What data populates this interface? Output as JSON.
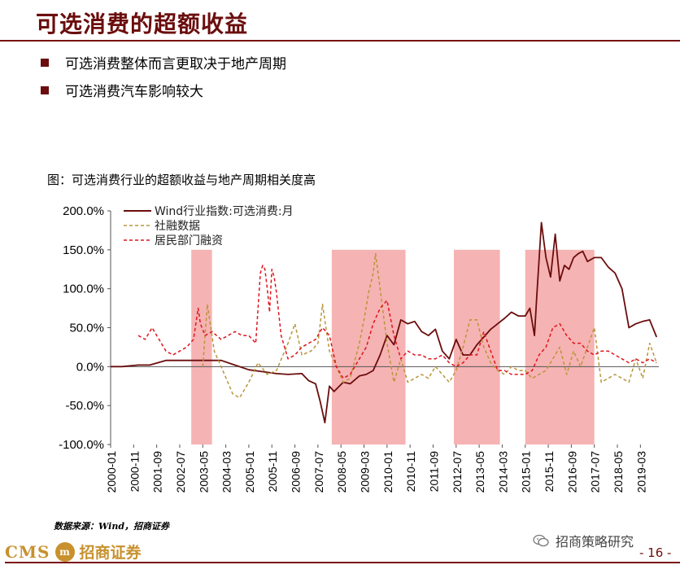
{
  "header": {
    "title": "可选消费的超额收益"
  },
  "bullets": [
    "可选消费整体而言更取决于地产周期",
    "可选消费汽车影响较大"
  ],
  "figure_caption": "图：可选消费行业的超额收益与地产周期相关度高",
  "source_note": "数据来源：Wind，招商证券",
  "footer": {
    "logo_latin": "CMS",
    "logo_badge": "m",
    "logo_chinese": "招商证券",
    "wechat_label": "招商策略研究",
    "page_number": "- 16 -"
  },
  "colors": {
    "accent": "#6b0d0d",
    "wind_series": "#6b0d0d",
    "social_financing_series": "#b8963a",
    "household_series": "#e0141e",
    "shade": "#f4a6a6"
  },
  "chart_data": {
    "type": "line",
    "title": "",
    "xlabel": "",
    "ylabel": "",
    "ylim": [
      -100,
      200
    ],
    "yticks": [
      -100,
      -50,
      0,
      50,
      100,
      150,
      200
    ],
    "ytick_labels": [
      "-100.0%",
      "-50.0%",
      "0.0%",
      "50.0%",
      "100.0%",
      "150.0%",
      "200.0%"
    ],
    "xlim": [
      "2000-01",
      "2019-11"
    ],
    "xtick_labels": [
      "2000-01",
      "2000-11",
      "2001-09",
      "2002-07",
      "2003-05",
      "2004-03",
      "2005-01",
      "2005-11",
      "2006-09",
      "2007-07",
      "2008-05",
      "2009-03",
      "2010-01",
      "2010-11",
      "2011-09",
      "2012-07",
      "2013-05",
      "2014-03",
      "2015-01",
      "2015-11",
      "2016-09",
      "2017-07",
      "2018-05",
      "2019-03"
    ],
    "legend_position": "top-left",
    "shaded_periods": [
      [
        "2002-12",
        "2003-09"
      ],
      [
        "2008-01",
        "2010-09"
      ],
      [
        "2012-06",
        "2014-02"
      ],
      [
        "2015-01",
        "2017-07"
      ]
    ],
    "series": [
      {
        "name": "Wind行业指数:可选消费:月",
        "style": "solid",
        "x": [
          "2000-01",
          "2000-06",
          "2001-01",
          "2001-06",
          "2002-01",
          "2002-06",
          "2003-01",
          "2003-06",
          "2004-01",
          "2004-06",
          "2005-01",
          "2005-06",
          "2006-01",
          "2006-06",
          "2006-12",
          "2007-03",
          "2007-06",
          "2007-08",
          "2007-10",
          "2007-12",
          "2008-02",
          "2008-06",
          "2008-09",
          "2009-01",
          "2009-04",
          "2009-07",
          "2009-10",
          "2010-01",
          "2010-04",
          "2010-07",
          "2010-10",
          "2011-01",
          "2011-04",
          "2011-07",
          "2011-10",
          "2012-01",
          "2012-04",
          "2012-07",
          "2012-10",
          "2013-01",
          "2013-04",
          "2013-07",
          "2013-10",
          "2014-01",
          "2014-04",
          "2014-07",
          "2014-10",
          "2015-01",
          "2015-03",
          "2015-05",
          "2015-06",
          "2015-08",
          "2015-10",
          "2015-12",
          "2016-02",
          "2016-04",
          "2016-06",
          "2016-08",
          "2016-10",
          "2016-12",
          "2017-02",
          "2017-04",
          "2017-07",
          "2017-10",
          "2018-01",
          "2018-04",
          "2018-07",
          "2018-10",
          "2019-01",
          "2019-04",
          "2019-07",
          "2019-10"
        ],
        "values": [
          0,
          0,
          2,
          2,
          8,
          8,
          8,
          8,
          8,
          3,
          -4,
          -6,
          -9,
          -10,
          -9,
          -18,
          -22,
          -45,
          -72,
          -25,
          -32,
          -20,
          -22,
          -12,
          -10,
          -5,
          15,
          40,
          28,
          60,
          55,
          58,
          45,
          40,
          48,
          20,
          10,
          35,
          15,
          15,
          28,
          38,
          48,
          55,
          62,
          70,
          65,
          65,
          75,
          40,
          90,
          185,
          140,
          115,
          170,
          110,
          130,
          125,
          140,
          145,
          148,
          135,
          140,
          140,
          128,
          120,
          100,
          50,
          55,
          58,
          60,
          38
        ]
      },
      {
        "name": "社融数据",
        "style": "dashed",
        "x": [
          "2000-01",
          "2001-01",
          "2002-01",
          "2003-01",
          "2003-05",
          "2003-07",
          "2003-10",
          "2004-01",
          "2004-06",
          "2004-09",
          "2005-01",
          "2005-05",
          "2005-09",
          "2006-01",
          "2006-06",
          "2006-09",
          "2006-12",
          "2007-04",
          "2007-07",
          "2007-09",
          "2007-12",
          "2008-03",
          "2008-06",
          "2008-09",
          "2009-01",
          "2009-03",
          "2009-05",
          "2009-07",
          "2009-08",
          "2009-10",
          "2010-01",
          "2010-04",
          "2010-07",
          "2010-10",
          "2011-01",
          "2011-04",
          "2011-07",
          "2011-10",
          "2012-01",
          "2012-04",
          "2012-07",
          "2012-10",
          "2013-01",
          "2013-04",
          "2013-07",
          "2013-10",
          "2014-01",
          "2014-04",
          "2014-07",
          "2014-10",
          "2015-01",
          "2015-04",
          "2015-07",
          "2015-10",
          "2016-01",
          "2016-04",
          "2016-07",
          "2016-10",
          "2017-01",
          "2017-04",
          "2017-07",
          "2017-10",
          "2018-01",
          "2018-04",
          "2018-07",
          "2018-10",
          "2019-01",
          "2019-04",
          "2019-07",
          "2019-10"
        ],
        "values": [
          null,
          null,
          null,
          null,
          0,
          80,
          20,
          0,
          -35,
          -40,
          -20,
          5,
          -10,
          -5,
          30,
          55,
          15,
          20,
          30,
          80,
          20,
          0,
          -20,
          -15,
          30,
          60,
          95,
          120,
          145,
          100,
          30,
          -20,
          10,
          -20,
          -15,
          -10,
          -15,
          0,
          -10,
          -20,
          -5,
          25,
          60,
          60,
          25,
          5,
          -5,
          -10,
          0,
          -5,
          -5,
          -15,
          -10,
          -5,
          10,
          25,
          -10,
          20,
          0,
          25,
          50,
          -20,
          -15,
          -10,
          -15,
          -20,
          10,
          -15,
          30,
          5
        ]
      },
      {
        "name": "居民部门融资",
        "style": "dashed",
        "x": [
          "2000-01",
          "2000-04",
          "2000-07",
          "2000-10",
          "2001-01",
          "2001-04",
          "2001-07",
          "2001-10",
          "2002-01",
          "2002-04",
          "2002-07",
          "2002-10",
          "2003-01",
          "2003-03",
          "2003-04",
          "2003-06",
          "2003-09",
          "2004-01",
          "2004-04",
          "2004-07",
          "2004-10",
          "2005-01",
          "2005-04",
          "2005-06",
          "2005-07",
          "2005-08",
          "2005-09",
          "2005-10",
          "2005-11",
          "2005-12",
          "2006-01",
          "2006-03",
          "2006-06",
          "2006-09",
          "2006-12",
          "2007-03",
          "2007-06",
          "2007-09",
          "2007-12",
          "2008-03",
          "2008-06",
          "2008-09",
          "2009-01",
          "2009-04",
          "2009-07",
          "2009-10",
          "2010-01",
          "2010-04",
          "2010-07",
          "2010-10",
          "2011-01",
          "2011-04",
          "2011-07",
          "2011-10",
          "2012-01",
          "2012-04",
          "2012-07",
          "2012-10",
          "2013-01",
          "2013-04",
          "2013-07",
          "2013-10",
          "2014-01",
          "2014-04",
          "2014-07",
          "2014-10",
          "2015-01",
          "2015-04",
          "2015-07",
          "2015-10",
          "2016-01",
          "2016-04",
          "2016-07",
          "2016-10",
          "2017-01",
          "2017-04",
          "2017-07",
          "2017-10",
          "2018-01",
          "2018-04",
          "2018-07",
          "2018-10",
          "2019-01",
          "2019-04",
          "2019-07",
          "2019-10"
        ],
        "values": [
          null,
          null,
          null,
          null,
          40,
          35,
          50,
          35,
          20,
          15,
          20,
          25,
          35,
          75,
          55,
          40,
          45,
          35,
          40,
          45,
          40,
          40,
          30,
          120,
          130,
          125,
          100,
          70,
          125,
          115,
          95,
          40,
          10,
          15,
          25,
          30,
          35,
          50,
          40,
          0,
          -15,
          -10,
          10,
          25,
          55,
          75,
          85,
          40,
          10,
          20,
          15,
          15,
          10,
          10,
          15,
          5,
          0,
          5,
          15,
          15,
          45,
          20,
          -5,
          -5,
          -10,
          -10,
          -10,
          -5,
          15,
          25,
          50,
          55,
          40,
          30,
          30,
          20,
          15,
          20,
          20,
          15,
          10,
          5,
          10,
          5,
          10,
          5
        ]
      }
    ]
  }
}
